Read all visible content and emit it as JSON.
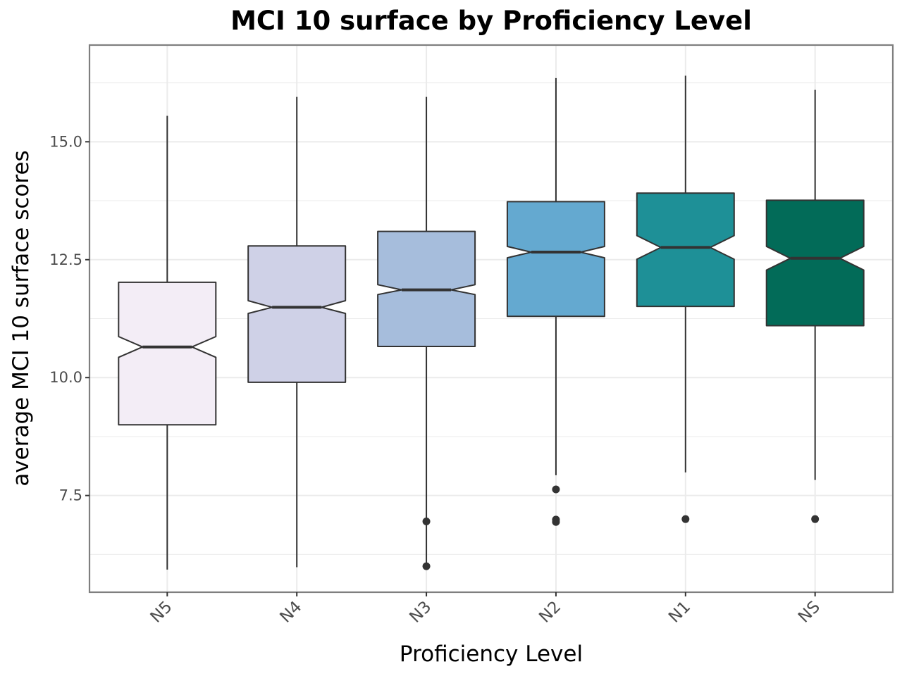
{
  "chart_data": {
    "type": "boxplot",
    "notched": true,
    "title": "MCI 10 surface by Proficiency Level",
    "xlabel": "Proficiency Level",
    "ylabel": "average MCI 10 surface scores",
    "ylim": [
      5.45,
      17.05
    ],
    "yticks": [
      7.5,
      10.0,
      12.5,
      15.0
    ],
    "ytick_labels": [
      "7.5",
      "10.0",
      "12.5",
      "15.0"
    ],
    "grid": true,
    "categories": [
      "N5",
      "N4",
      "N3",
      "N2",
      "N1",
      "NS"
    ],
    "boxes": [
      {
        "category": "N5",
        "q1": 9.0,
        "median": 10.65,
        "q3": 12.02,
        "notch_low": 10.43,
        "notch_high": 10.87,
        "whisker_low": 5.93,
        "whisker_high": 15.55,
        "outliers": [],
        "color": "#f3edf6"
      },
      {
        "category": "N4",
        "q1": 9.9,
        "median": 11.49,
        "q3": 12.79,
        "notch_low": 11.36,
        "notch_high": 11.63,
        "whisker_low": 5.98,
        "whisker_high": 15.95,
        "outliers": [],
        "color": "#cfd1e7"
      },
      {
        "category": "N3",
        "q1": 10.66,
        "median": 11.86,
        "q3": 13.1,
        "notch_low": 11.76,
        "notch_high": 11.97,
        "whisker_low": 5.98,
        "whisker_high": 15.95,
        "outliers": [
          6.95,
          6.0
        ],
        "color": "#a6bddc"
      },
      {
        "category": "N2",
        "q1": 11.3,
        "median": 12.66,
        "q3": 13.73,
        "notch_low": 12.54,
        "notch_high": 12.78,
        "whisker_low": 7.93,
        "whisker_high": 16.35,
        "outliers": [
          7.63,
          6.99,
          6.94
        ],
        "color": "#64a9d0"
      },
      {
        "category": "N1",
        "q1": 11.51,
        "median": 12.76,
        "q3": 13.91,
        "notch_low": 12.51,
        "notch_high": 13.01,
        "whisker_low": 7.99,
        "whisker_high": 16.4,
        "outliers": [
          7.0
        ],
        "color": "#1e9097"
      },
      {
        "category": "NS",
        "q1": 11.1,
        "median": 12.53,
        "q3": 13.76,
        "notch_low": 12.28,
        "notch_high": 12.78,
        "whisker_low": 7.83,
        "whisker_high": 16.1,
        "outliers": [
          7.0
        ],
        "color": "#026b58"
      }
    ]
  }
}
